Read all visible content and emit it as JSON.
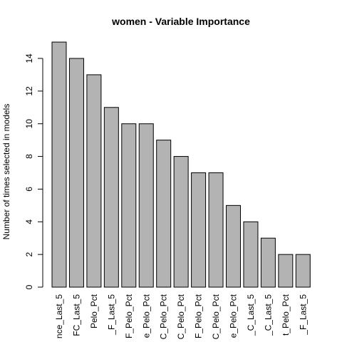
{
  "chart_data": {
    "type": "bar",
    "title": "women - Variable Importance",
    "xlabel": "",
    "ylabel": "Number of times selected in models",
    "ylim": [
      0,
      15
    ],
    "yticks": [
      0,
      2,
      4,
      6,
      8,
      10,
      12,
      14
    ],
    "grid": false,
    "bar_color": "#b3b3b3",
    "categories": [
      "nce_Last_5",
      "FC_Last_5",
      "Pelo_Pct",
      "_F_Last_5",
      "F_Pelo_Pct",
      "e_Pelo_Pct",
      "C_Pelo_Pct",
      "C_Pelo_Pct",
      "F_Pelo_Pct",
      "C_Pelo_Pct",
      "e_Pelo_Pct",
      "_C_Last_5",
      "_C_Last_5",
      "t_Pelo_Pct",
      "_F_Last_5"
    ],
    "values": [
      15,
      14,
      13,
      11,
      10,
      10,
      9,
      8,
      7,
      7,
      5,
      4,
      3,
      2,
      2
    ]
  }
}
